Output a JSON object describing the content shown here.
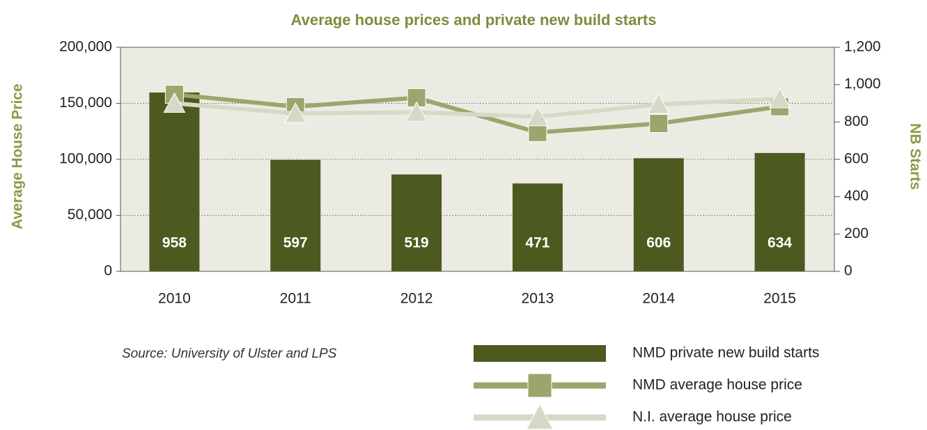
{
  "chart_data": {
    "type": "bar_line",
    "title": "Average house prices and private new build starts",
    "ylabel": "Average House Price",
    "y2label": "NB Starts",
    "source": "Source: University of Ulster and LPS",
    "categories": [
      "2010",
      "2011",
      "2012",
      "2013",
      "2014",
      "2015"
    ],
    "ylim": [
      0,
      200000
    ],
    "yticks": [
      0,
      {
        "value": 50000,
        "label": "50,000"
      },
      {
        "value": 100000,
        "label": "100,000"
      },
      {
        "value": 150000,
        "label": "150,000"
      },
      {
        "value": 200000,
        "label": "200,000"
      }
    ],
    "y2lim": [
      0,
      1200
    ],
    "y2ticks": [
      0,
      200,
      400,
      600,
      800,
      {
        "value": 1000,
        "label": "1,000"
      },
      {
        "value": 1200,
        "label": "1,200"
      }
    ],
    "grid": true,
    "series": [
      {
        "name": "NMD private new build starts",
        "type": "bar",
        "axis": "y2",
        "color": "#4d5a1f",
        "values": [
          958,
          597,
          519,
          471,
          606,
          634
        ]
      },
      {
        "name": "NMD average house price",
        "type": "line",
        "marker": "square",
        "color": "#9ba66c",
        "values": [
          158000,
          147000,
          155000,
          124000,
          132000,
          147000
        ]
      },
      {
        "name": "N.I. average house price",
        "type": "line",
        "marker": "triangle",
        "color": "#d7d9c6",
        "values": [
          150000,
          141000,
          142000,
          138000,
          149000,
          154000
        ]
      }
    ]
  }
}
